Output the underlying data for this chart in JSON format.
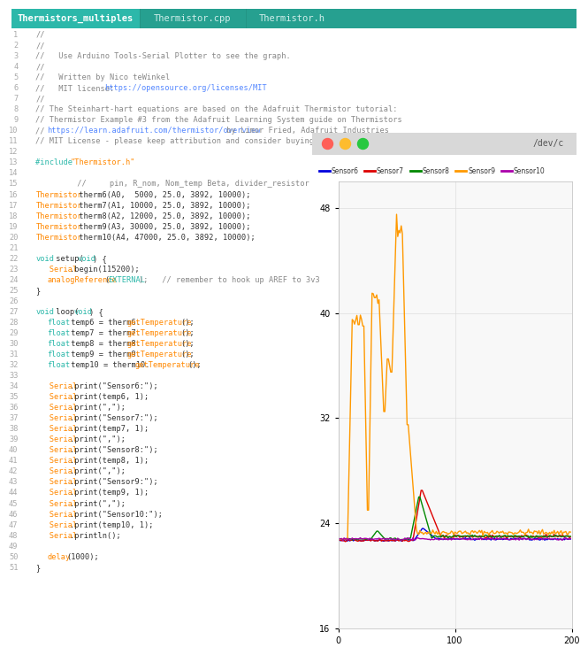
{
  "tab_labels": [
    "Thermistors_multiples",
    "Thermistor.cpp",
    "Thermistor.h"
  ],
  "tab_bg_active": "#2cb8aa",
  "tab_bg_inactive": "#26a090",
  "tab_bar_bg": "#26a090",
  "editor_bg": "#ffffff",
  "line_num_color": "#aaaaaa",
  "comment_color": "#888888",
  "keyword_color": "#0000ff",
  "type_color": "#ff7700",
  "string_color": "#dd4444",
  "include_color": "#cc6600",
  "default_color": "#333333",
  "teal_color": "#2cb8aa",
  "orange_color": "#ff8800",
  "blue_kw_color": "#0000ee",
  "plotter_title_bar_bg": "#e0e0e0",
  "plotter_bg": "#f8f8f8",
  "plotter_title": "/dev/c",
  "traffic_red": "#ff5f57",
  "traffic_yellow": "#febc2e",
  "traffic_green": "#28c840",
  "sensor_colors": {
    "Sensor6": "#0000dd",
    "Sensor7": "#dd0000",
    "Sensor8": "#008800",
    "Sensor9": "#ff9900",
    "Sensor10": "#aa00aa"
  },
  "ylim": [
    16.0,
    50.0
  ],
  "xlim": [
    0,
    200
  ],
  "yticks": [
    16.0,
    24.0,
    32.0,
    40.0,
    48.0
  ],
  "xticks": [
    0,
    100,
    200
  ]
}
